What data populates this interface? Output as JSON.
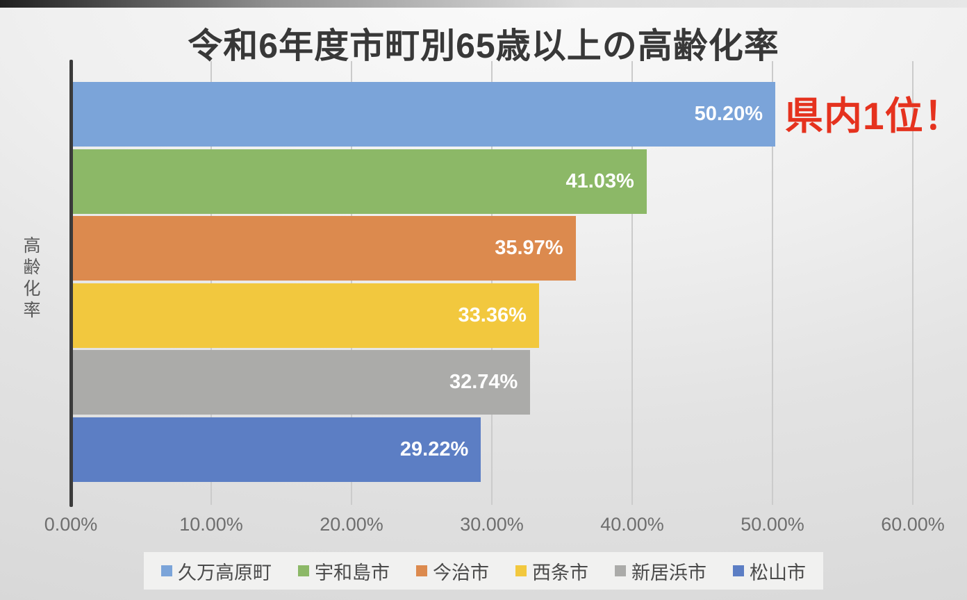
{
  "chart_data": {
    "type": "bar",
    "orientation": "horizontal",
    "title": "令和6年度市町別65歳以上の高齢化率",
    "ylabel": "高齢化率",
    "xlabel": "",
    "categories": [
      "久万高原町",
      "宇和島市",
      "今治市",
      "西条市",
      "新居浜市",
      "松山市"
    ],
    "values": [
      50.2,
      41.03,
      35.97,
      33.36,
      32.74,
      29.22
    ],
    "data_labels": [
      "50.20%",
      "41.03%",
      "35.97%",
      "33.36%",
      "32.74%",
      "29.22%"
    ],
    "bar_colors": [
      "#7BA4D9",
      "#8CB867",
      "#DC8A4E",
      "#F2C83E",
      "#ABABA9",
      "#5C7EC4"
    ],
    "x_ticks": [
      {
        "value": 0,
        "label": "0.00%"
      },
      {
        "value": 10,
        "label": "10.00%"
      },
      {
        "value": 20,
        "label": "20.00%"
      },
      {
        "value": 30,
        "label": "30.00%"
      },
      {
        "value": 40,
        "label": "40.00%"
      },
      {
        "value": 50,
        "label": "50.00%"
      },
      {
        "value": 60,
        "label": "60.00%"
      }
    ],
    "xlim": [
      0,
      63.8
    ],
    "grid": true,
    "legend_position": "bottom",
    "annotation": {
      "text": "県内1位！",
      "color": "#E5321E"
    },
    "colors": {
      "title_text": "#383838",
      "axis_line": "#3b3b3b",
      "tick_text": "#6e6e6e",
      "data_label_text": "#ffffff",
      "legend_background": "#f1f1f0"
    }
  }
}
